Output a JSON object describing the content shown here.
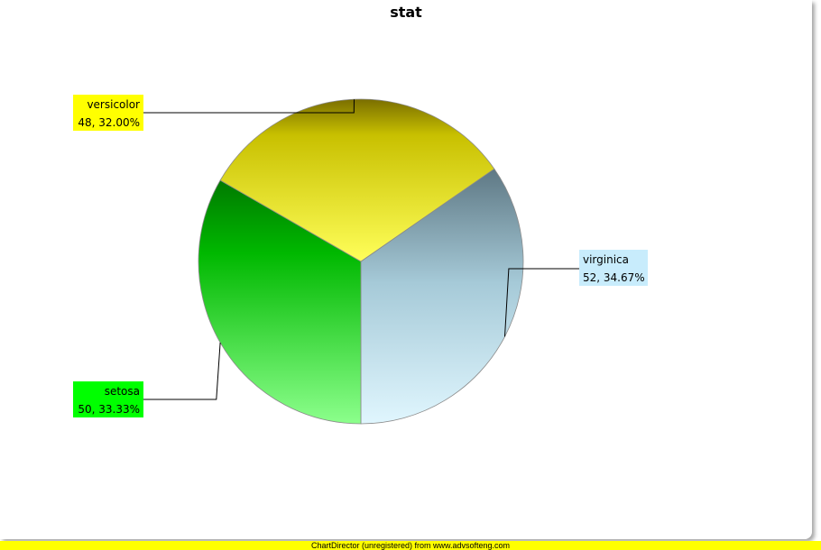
{
  "chart_data": {
    "type": "pie",
    "title": "stat",
    "slices": [
      {
        "label": "setosa",
        "value": 50,
        "percent": "33.33%",
        "color": "#00ff00"
      },
      {
        "label": "versicolor",
        "value": 48,
        "percent": "32.00%",
        "color": "#ffff00"
      },
      {
        "label": "virginica",
        "value": 52,
        "percent": "34.67%",
        "color": "#c8ecfc"
      }
    ]
  },
  "footer": "ChartDirector (unregistered) from www.advsofteng.com"
}
